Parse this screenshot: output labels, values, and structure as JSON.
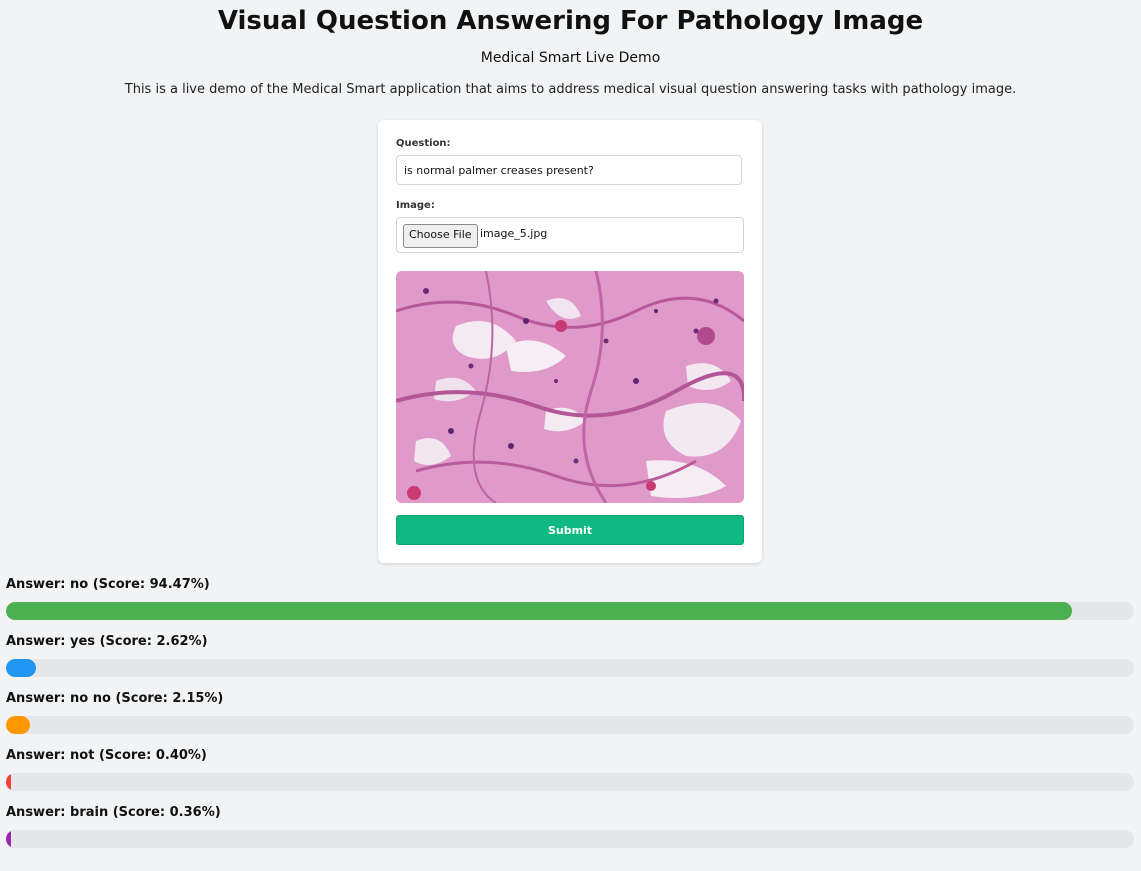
{
  "header": {
    "title": "Visual Question Answering For Pathology Image",
    "subtitle": "Medical Smart Live Demo",
    "description": "This is a live demo of the Medical Smart application that aims to address medical visual question answering tasks with pathology image."
  },
  "form": {
    "question_label": "Question:",
    "question_value": "is normal palmer creases present?",
    "image_label": "Image:",
    "choose_file_label": "Choose File",
    "file_name": "image_5.jpg",
    "submit_label": "Submit",
    "submit_color": "#10b981"
  },
  "answers": [
    {
      "text": "Answer: no (Score: 94.47%)",
      "score": 94.47,
      "color": "#4caf50"
    },
    {
      "text": "Answer: yes (Score: 2.62%)",
      "score": 2.62,
      "color": "#2196f3"
    },
    {
      "text": "Answer: no no (Score: 2.15%)",
      "score": 2.15,
      "color": "#ff9800"
    },
    {
      "text": "Answer: not (Score: 0.40%)",
      "score": 0.4,
      "color": "#f44336"
    },
    {
      "text": "Answer: brain (Score: 0.36%)",
      "score": 0.36,
      "color": "#9c27b0"
    }
  ]
}
